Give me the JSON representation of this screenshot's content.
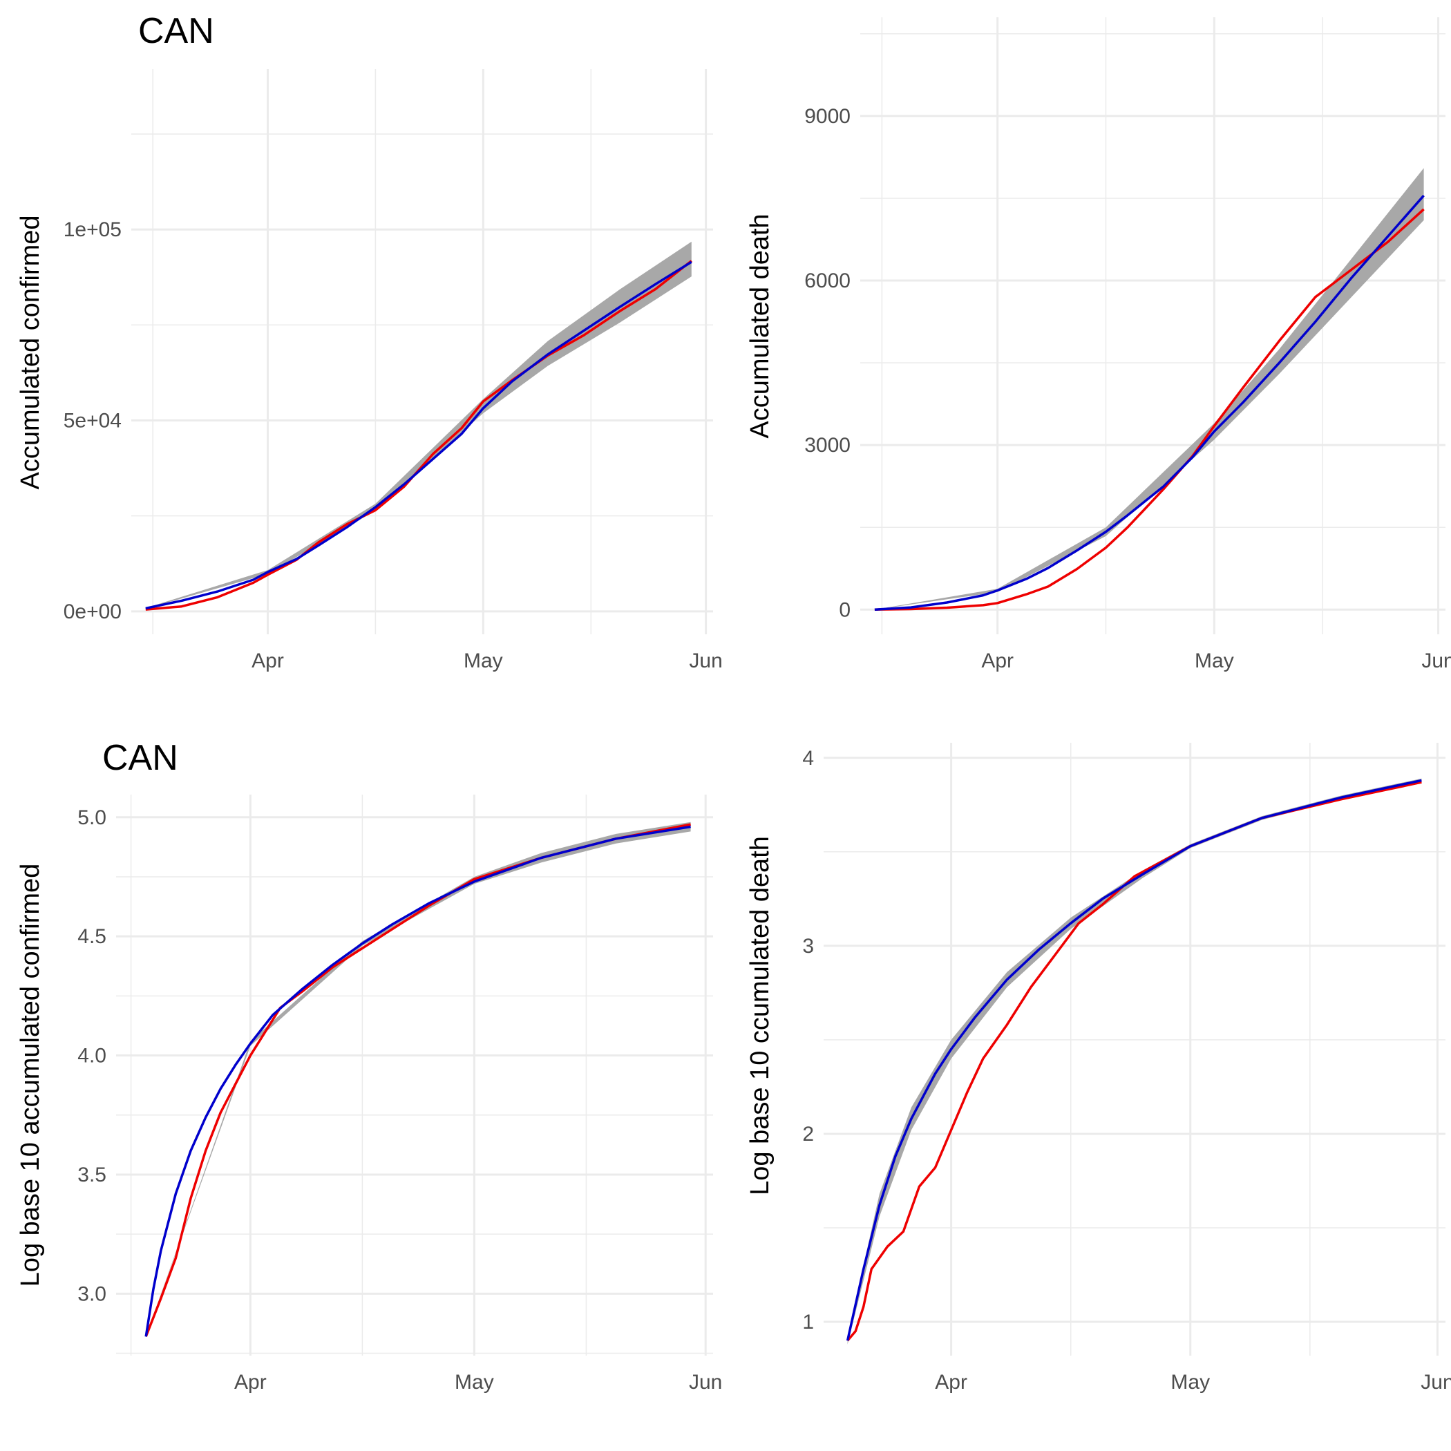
{
  "colors": {
    "observed": "#ee0000",
    "fitted": "#0000cc",
    "band": "#a8a8a8",
    "grid": "#ebebeb"
  },
  "panels": [
    {
      "title": "CAN",
      "ylabel": "Accumulated confirmed"
    },
    {
      "title": "",
      "ylabel": "Accumulated death"
    },
    {
      "title": "CAN",
      "ylabel": "Log base 10 accumulated confirmed"
    },
    {
      "title": "",
      "ylabel": "Log base 10 ccumulated death"
    }
  ],
  "chart_data": [
    {
      "type": "line",
      "title": "CAN",
      "xlabel": "",
      "ylabel": "Accumulated confirmed",
      "xlim": [
        "2020-03-13",
        "2020-06-02"
      ],
      "ylim": [
        -6000,
        142000
      ],
      "x_ticks": [
        "Apr",
        "May",
        "Jun"
      ],
      "y_ticks": [
        0,
        50000,
        100000
      ],
      "y_tick_labels": [
        "0e+00",
        "5e+04",
        "1e+05"
      ],
      "grid": true,
      "legend": "none",
      "series": [
        {
          "name": "",
          "role": "observed",
          "x": [
            "2020-03-15",
            "2020-03-20",
            "2020-03-25",
            "2020-03-30",
            "2020-04-01",
            "2020-04-05",
            "2020-04-08",
            "2020-04-12",
            "2020-04-16",
            "2020-04-20",
            "2020-04-24",
            "2020-04-28",
            "2020-05-01",
            "2020-05-05",
            "2020-05-10",
            "2020-05-15",
            "2020-05-20",
            "2020-05-25",
            "2020-05-30"
          ],
          "y": [
            500,
            1300,
            3700,
            7500,
            9600,
            13500,
            18000,
            22800,
            26500,
            32700,
            41200,
            48000,
            55000,
            60500,
            67000,
            72300,
            78600,
            84400,
            91800
          ]
        },
        {
          "name": "",
          "role": "fitted",
          "x": [
            "2020-03-15",
            "2020-03-20",
            "2020-03-25",
            "2020-03-30",
            "2020-04-01",
            "2020-04-05",
            "2020-04-08",
            "2020-04-12",
            "2020-04-16",
            "2020-04-20",
            "2020-04-24",
            "2020-04-28",
            "2020-05-01",
            "2020-05-05",
            "2020-05-10",
            "2020-05-15",
            "2020-05-20",
            "2020-05-25",
            "2020-05-30"
          ],
          "y": [
            800,
            2800,
            5200,
            8300,
            10300,
            13700,
            17200,
            22000,
            27300,
            33300,
            39900,
            46500,
            53200,
            60200,
            67300,
            73500,
            79700,
            85700,
            91500
          ]
        },
        {
          "name": "",
          "role": "band-upper",
          "x": [
            "2020-03-15",
            "2020-04-01",
            "2020-04-16",
            "2020-05-01",
            "2020-05-10",
            "2020-05-20",
            "2020-05-30"
          ],
          "y": [
            900,
            10800,
            28200,
            55600,
            70800,
            84300,
            96800
          ]
        },
        {
          "name": "",
          "role": "band-lower",
          "x": [
            "2020-03-15",
            "2020-04-01",
            "2020-04-16",
            "2020-05-01",
            "2020-05-10",
            "2020-05-20",
            "2020-05-30"
          ],
          "y": [
            700,
            9800,
            26400,
            51900,
            64300,
            75600,
            87700
          ]
        }
      ]
    },
    {
      "type": "line",
      "title": "",
      "xlabel": "",
      "ylabel": "Accumulated death",
      "xlim": [
        "2020-03-13",
        "2020-06-02"
      ],
      "ylim": [
        -450,
        10800
      ],
      "x_ticks": [
        "Apr",
        "May",
        "Jun"
      ],
      "y_ticks": [
        0,
        3000,
        6000,
        9000
      ],
      "y_tick_labels": [
        "0",
        "3000",
        "6000",
        "9000"
      ],
      "grid": true,
      "legend": "none",
      "series": [
        {
          "name": "",
          "role": "observed",
          "x": [
            "2020-03-15",
            "2020-03-20",
            "2020-03-25",
            "2020-03-30",
            "2020-04-01",
            "2020-04-05",
            "2020-04-08",
            "2020-04-12",
            "2020-04-16",
            "2020-04-19",
            "2020-04-24",
            "2020-04-28",
            "2020-05-01",
            "2020-05-05",
            "2020-05-10",
            "2020-05-15",
            "2020-05-20",
            "2020-05-25",
            "2020-05-30"
          ],
          "y": [
            1,
            10,
            35,
            80,
            120,
            280,
            420,
            740,
            1130,
            1500,
            2200,
            2800,
            3350,
            4050,
            4900,
            5700,
            6200,
            6700,
            7300
          ]
        },
        {
          "name": "",
          "role": "fitted",
          "x": [
            "2020-03-15",
            "2020-03-20",
            "2020-03-25",
            "2020-03-30",
            "2020-04-01",
            "2020-04-05",
            "2020-04-08",
            "2020-04-12",
            "2020-04-16",
            "2020-04-19",
            "2020-04-24",
            "2020-04-28",
            "2020-05-01",
            "2020-05-05",
            "2020-05-10",
            "2020-05-15",
            "2020-05-20",
            "2020-05-25",
            "2020-05-30"
          ],
          "y": [
            0,
            40,
            130,
            260,
            350,
            560,
            760,
            1080,
            1420,
            1720,
            2250,
            2780,
            3250,
            3780,
            4500,
            5250,
            6050,
            6800,
            7550
          ]
        },
        {
          "name": "",
          "role": "band-upper",
          "x": [
            "2020-03-15",
            "2020-04-01",
            "2020-04-16",
            "2020-05-01",
            "2020-05-10",
            "2020-05-20",
            "2020-05-30"
          ],
          "y": [
            1,
            380,
            1500,
            3400,
            4750,
            6400,
            8050
          ]
        },
        {
          "name": "",
          "role": "band-lower",
          "x": [
            "2020-03-15",
            "2020-04-01",
            "2020-04-16",
            "2020-05-01",
            "2020-05-10",
            "2020-05-20",
            "2020-05-30"
          ],
          "y": [
            0,
            320,
            1340,
            3100,
            4300,
            5700,
            7100
          ]
        }
      ]
    },
    {
      "type": "line",
      "title": "CAN",
      "xlabel": "",
      "ylabel": "Log base 10 accumulated confirmed",
      "xlim": [
        "2020-03-14",
        "2020-06-02"
      ],
      "ylim": [
        2.74,
        5.095
      ],
      "x_ticks": [
        "Apr",
        "May",
        "Jun"
      ],
      "y_ticks": [
        3.0,
        3.5,
        4.0,
        4.5,
        5.0
      ],
      "y_tick_labels": [
        "3.0",
        "3.5",
        "4.0",
        "4.5",
        "5.0"
      ],
      "grid": true,
      "legend": "none",
      "series": [
        {
          "name": "",
          "role": "observed",
          "x": [
            "2020-03-18",
            "2020-03-20",
            "2020-03-22",
            "2020-03-24",
            "2020-03-26",
            "2020-03-28",
            "2020-03-30",
            "2020-04-01",
            "2020-04-03",
            "2020-04-05",
            "2020-04-08",
            "2020-04-12",
            "2020-04-16",
            "2020-04-20",
            "2020-04-25",
            "2020-05-01",
            "2020-05-10",
            "2020-05-20",
            "2020-05-30"
          ],
          "y": [
            2.82,
            2.98,
            3.15,
            3.4,
            3.6,
            3.76,
            3.88,
            4.0,
            4.1,
            4.2,
            4.27,
            4.37,
            4.45,
            4.53,
            4.63,
            4.74,
            4.83,
            4.91,
            4.97
          ]
        },
        {
          "name": "",
          "role": "fitted",
          "x": [
            "2020-03-18",
            "2020-03-19",
            "2020-03-20",
            "2020-03-22",
            "2020-03-24",
            "2020-03-26",
            "2020-03-28",
            "2020-03-30",
            "2020-04-01",
            "2020-04-04",
            "2020-04-08",
            "2020-04-12",
            "2020-04-16",
            "2020-04-20",
            "2020-04-25",
            "2020-05-01",
            "2020-05-10",
            "2020-05-20",
            "2020-05-30"
          ],
          "y": [
            2.82,
            3.02,
            3.18,
            3.42,
            3.6,
            3.74,
            3.86,
            3.96,
            4.05,
            4.17,
            4.28,
            4.38,
            4.47,
            4.55,
            4.64,
            4.73,
            4.83,
            4.91,
            4.96
          ]
        },
        {
          "name": "",
          "role": "band-upper",
          "x": [
            "2020-03-18",
            "2020-04-01",
            "2020-04-16",
            "2020-05-01",
            "2020-05-10",
            "2020-05-20",
            "2020-05-30"
          ],
          "y": [
            2.82,
            4.06,
            4.48,
            4.75,
            4.85,
            4.93,
            4.98
          ]
        },
        {
          "name": "",
          "role": "band-lower",
          "x": [
            "2020-03-18",
            "2020-04-01",
            "2020-04-16",
            "2020-05-01",
            "2020-05-10",
            "2020-05-20",
            "2020-05-30"
          ],
          "y": [
            2.82,
            4.04,
            4.46,
            4.72,
            4.81,
            4.89,
            4.94
          ]
        }
      ]
    },
    {
      "type": "line",
      "title": "",
      "xlabel": "",
      "ylabel": "Log base 10 ccumulated death",
      "xlim": [
        "2020-03-16",
        "2020-06-02"
      ],
      "ylim": [
        0.82,
        4.08
      ],
      "x_ticks": [
        "Apr",
        "May",
        "Jun"
      ],
      "y_ticks": [
        1,
        2,
        3,
        4
      ],
      "y_tick_labels": [
        "1",
        "2",
        "3",
        "4"
      ],
      "grid": true,
      "legend": "none",
      "series": [
        {
          "name": "",
          "role": "observed",
          "x": [
            "2020-03-19",
            "2020-03-20",
            "2020-03-21",
            "2020-03-22",
            "2020-03-24",
            "2020-03-26",
            "2020-03-28",
            "2020-03-30",
            "2020-04-01",
            "2020-04-03",
            "2020-04-05",
            "2020-04-08",
            "2020-04-11",
            "2020-04-14",
            "2020-04-17",
            "2020-04-20",
            "2020-04-24",
            "2020-05-01",
            "2020-05-10",
            "2020-05-20",
            "2020-05-30"
          ],
          "y": [
            0.9,
            0.95,
            1.08,
            1.28,
            1.4,
            1.48,
            1.72,
            1.82,
            2.02,
            2.22,
            2.4,
            2.58,
            2.78,
            2.95,
            3.12,
            3.22,
            3.37,
            3.53,
            3.68,
            3.78,
            3.87
          ]
        },
        {
          "name": "",
          "role": "fitted",
          "x": [
            "2020-03-19",
            "2020-03-21",
            "2020-03-23",
            "2020-03-25",
            "2020-03-27",
            "2020-03-30",
            "2020-04-01",
            "2020-04-04",
            "2020-04-08",
            "2020-04-12",
            "2020-04-16",
            "2020-04-20",
            "2020-04-25",
            "2020-05-01",
            "2020-05-10",
            "2020-05-20",
            "2020-05-30"
          ],
          "y": [
            0.9,
            1.28,
            1.62,
            1.88,
            2.08,
            2.32,
            2.45,
            2.62,
            2.82,
            2.98,
            3.12,
            3.25,
            3.38,
            3.53,
            3.68,
            3.79,
            3.88
          ]
        },
        {
          "name": "",
          "role": "band-upper",
          "x": [
            "2020-03-19",
            "2020-03-23",
            "2020-03-27",
            "2020-04-01",
            "2020-04-08",
            "2020-04-16",
            "2020-04-25",
            "2020-05-01",
            "2020-05-10",
            "2020-05-20",
            "2020-05-30"
          ],
          "y": [
            0.92,
            1.68,
            2.14,
            2.5,
            2.86,
            3.15,
            3.4,
            3.54,
            3.69,
            3.8,
            3.89
          ]
        },
        {
          "name": "",
          "role": "band-lower",
          "x": [
            "2020-03-19",
            "2020-03-23",
            "2020-03-27",
            "2020-04-01",
            "2020-04-08",
            "2020-04-16",
            "2020-04-25",
            "2020-05-01",
            "2020-05-10",
            "2020-05-20",
            "2020-05-30"
          ],
          "y": [
            0.88,
            1.56,
            2.02,
            2.4,
            2.78,
            3.09,
            3.36,
            3.52,
            3.67,
            3.78,
            3.87
          ]
        }
      ]
    }
  ]
}
